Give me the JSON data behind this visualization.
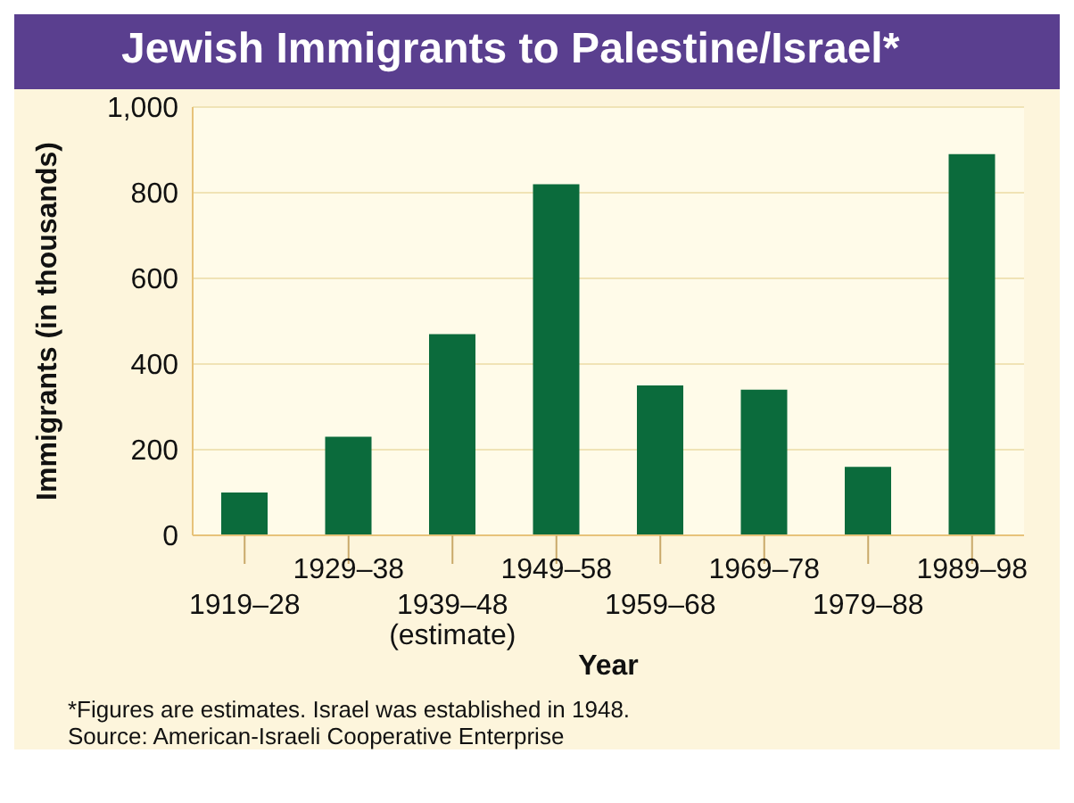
{
  "chart_data": {
    "type": "bar",
    "title": "Jewish Immigrants to Palestine/Israel*",
    "categories": [
      "1919–28",
      "1929–38",
      "1939–48 (estimate)",
      "1949–58",
      "1959–68",
      "1969–78",
      "1979–88",
      "1989–98"
    ],
    "values": [
      100,
      230,
      470,
      820,
      350,
      340,
      160,
      890
    ],
    "color": "#0b6b3c",
    "xlabel": "Year",
    "ylabel": "Immigrants (in thousands)",
    "ylim": [
      0,
      1000
    ],
    "yticks": [
      0,
      200,
      400,
      600,
      800,
      {
        "value": 1000,
        "label": "1,000"
      }
    ],
    "grid": "y",
    "annotations": [
      "*Figures are estimates. Israel was established in 1948.",
      "Source: American-Israeli Cooperative Enterprise"
    ]
  }
}
